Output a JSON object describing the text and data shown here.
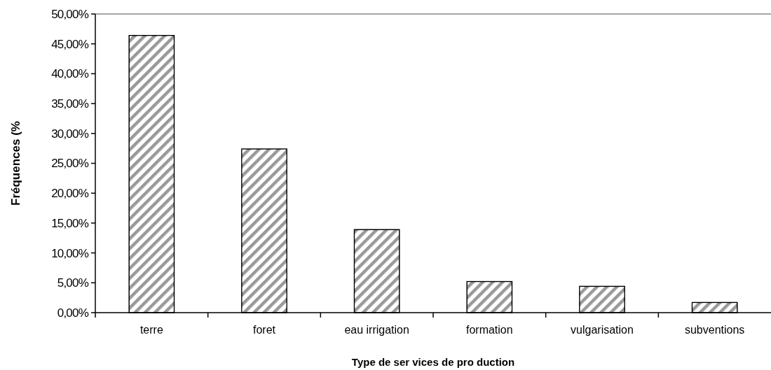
{
  "chart_data": {
    "type": "bar",
    "xlabel": "Type de ser vices de pro duction",
    "ylabel": "Fréquences (%",
    "categories": [
      "terre",
      "foret",
      "eau irrigation",
      "formation",
      "vulgarisation",
      "subventions"
    ],
    "values": [
      46.4,
      27.4,
      13.9,
      5.2,
      4.4,
      1.7
    ],
    "color": "#999999",
    "ylim": [
      0,
      50
    ],
    "yticks": [
      {
        "value": 0,
        "label": "0,00%"
      },
      {
        "value": 5,
        "label": "5,00%"
      },
      {
        "value": 10,
        "label": "10,00%"
      },
      {
        "value": 15,
        "label": "15,00%"
      },
      {
        "value": 20,
        "label": "20,00%"
      },
      {
        "value": 25,
        "label": "25,00%"
      },
      {
        "value": 30,
        "label": "30,00%"
      },
      {
        "value": 35,
        "label": "35,00%"
      },
      {
        "value": 40,
        "label": "40,00%"
      },
      {
        "value": 45,
        "label": "45,00%"
      },
      {
        "value": 50,
        "label": "50,00%"
      }
    ],
    "grid": false
  }
}
